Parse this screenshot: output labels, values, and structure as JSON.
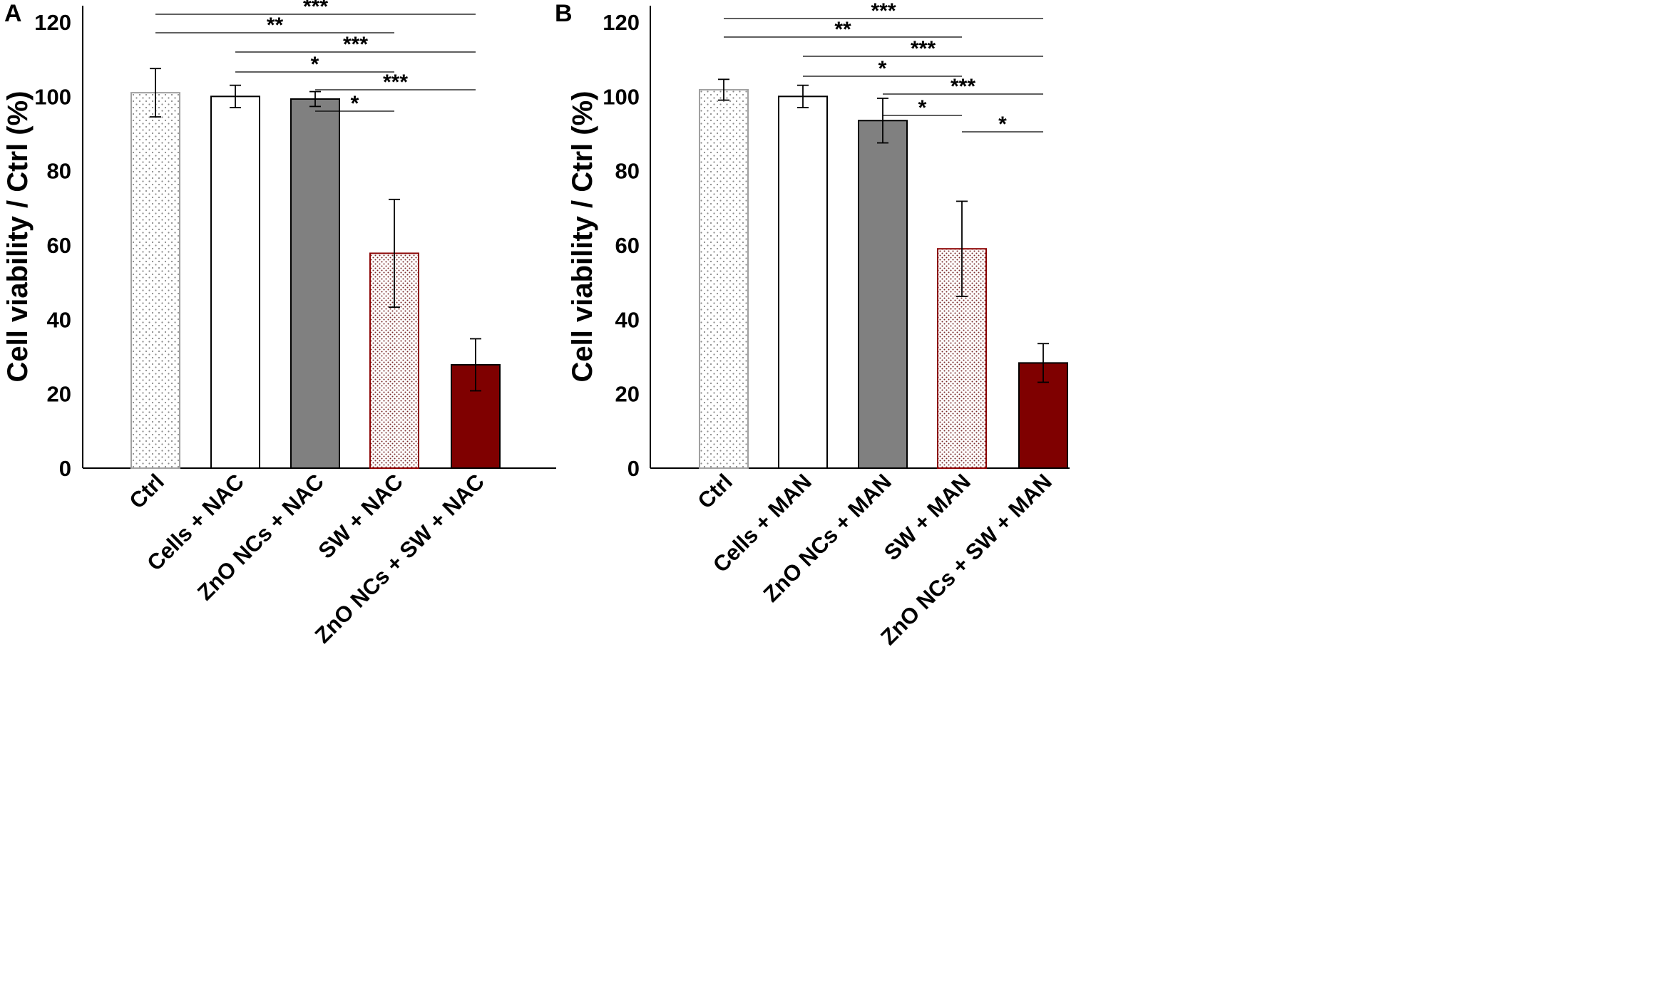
{
  "chart_data": [
    {
      "panel": "A",
      "type": "bar",
      "ylabel": "Cell viability / Ctrl (%)",
      "ylim": [
        0,
        120
      ],
      "yticks": [
        0,
        20,
        40,
        60,
        80,
        100,
        120
      ],
      "categories": [
        "Ctrl",
        "Cells + NAC",
        "ZnO NCs + NAC",
        "SW + NAC",
        "ZnO NCs + SW + NAC"
      ],
      "values": [
        101,
        100,
        99.3,
        57.8,
        27.8
      ],
      "errors": [
        6.5,
        3,
        2,
        14.5,
        7
      ],
      "bar_styles": [
        "dotted-light",
        "white",
        "gray",
        "dotted-red",
        "darkred"
      ],
      "significance": [
        {
          "from": 0,
          "to": 4,
          "label": "***"
        },
        {
          "from": 0,
          "to": 3,
          "label": "**"
        },
        {
          "from": 1,
          "to": 4,
          "label": "***"
        },
        {
          "from": 1,
          "to": 3,
          "label": "*"
        },
        {
          "from": 2,
          "to": 4,
          "label": "***"
        },
        {
          "from": 2,
          "to": 3,
          "label": "*"
        }
      ]
    },
    {
      "panel": "B",
      "type": "bar",
      "ylabel": "Cell viability / Ctrl (%)",
      "ylim": [
        0,
        120
      ],
      "yticks": [
        0,
        20,
        40,
        60,
        80,
        100,
        120
      ],
      "categories": [
        "Ctrl",
        "Cells + MAN",
        "ZnO NCs + MAN",
        "SW + MAN",
        "ZnO NCs + SW + MAN"
      ],
      "values": [
        101.8,
        100,
        93.5,
        59,
        28.3
      ],
      "errors": [
        2.8,
        3,
        6,
        12.8,
        5.2
      ],
      "bar_styles": [
        "dotted-light",
        "white",
        "gray",
        "dotted-red",
        "darkred"
      ],
      "significance": [
        {
          "from": 0,
          "to": 4,
          "label": "***"
        },
        {
          "from": 0,
          "to": 3,
          "label": "**"
        },
        {
          "from": 1,
          "to": 4,
          "label": "***"
        },
        {
          "from": 1,
          "to": 3,
          "label": "*"
        },
        {
          "from": 2,
          "to": 4,
          "label": "***"
        },
        {
          "from": 2,
          "to": 3,
          "label": "*"
        },
        {
          "from": 3,
          "to": 4,
          "label": "*"
        }
      ]
    }
  ],
  "colors": {
    "axis": "#000000",
    "dotted_light_edge": "#a0a0a0",
    "white_fill": "#ffffff",
    "gray_fill": "#808080",
    "dotted_red_edge": "#8b0000",
    "darkred_fill": "#7f0000"
  }
}
